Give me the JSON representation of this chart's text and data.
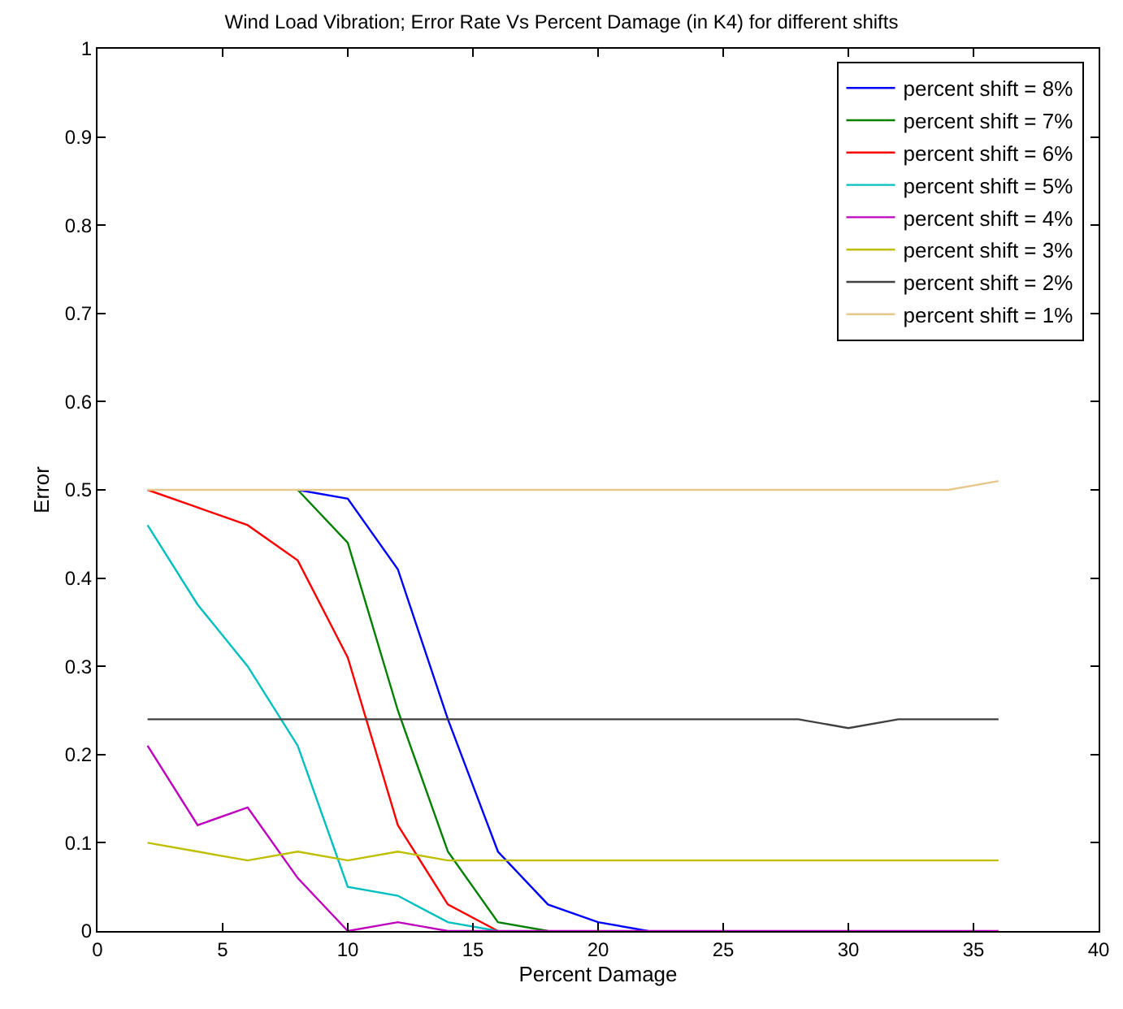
{
  "chart_data": {
    "type": "line",
    "title": "Wind Load Vibration; Error Rate Vs Percent Damage (in K4) for different shifts",
    "xlabel": "Percent Damage",
    "ylabel": "Error",
    "x": [
      2,
      4,
      6,
      8,
      10,
      12,
      14,
      16,
      18,
      20,
      22,
      24,
      26,
      28,
      30,
      32,
      34,
      36
    ],
    "series": [
      {
        "name": "percent shift = 8%",
        "color": "#0000ff",
        "values": [
          null,
          null,
          null,
          0.5,
          0.49,
          0.41,
          0.24,
          0.09,
          0.03,
          0.01,
          0,
          null,
          null,
          null,
          null,
          null,
          null,
          null
        ]
      },
      {
        "name": "percent shift = 7%",
        "color": "#008000",
        "values": [
          null,
          null,
          null,
          0.5,
          0.44,
          0.25,
          0.09,
          0.01,
          0,
          null,
          null,
          null,
          null,
          null,
          null,
          null,
          null,
          null
        ]
      },
      {
        "name": "percent shift = 6%",
        "color": "#ff0000",
        "values": [
          0.5,
          0.48,
          0.46,
          0.42,
          0.31,
          0.12,
          0.03,
          0,
          null,
          null,
          null,
          null,
          null,
          null,
          null,
          null,
          null,
          null
        ]
      },
      {
        "name": "percent shift = 5%",
        "color": "#00bfbf",
        "values": [
          0.46,
          0.37,
          0.3,
          0.21,
          0.05,
          0.04,
          0.01,
          0,
          null,
          null,
          null,
          null,
          null,
          null,
          null,
          null,
          null,
          null
        ]
      },
      {
        "name": "percent shift = 4%",
        "color": "#bf00bf",
        "values": [
          0.21,
          0.12,
          0.14,
          0.06,
          0,
          0.01,
          0,
          0,
          0,
          0,
          0,
          0,
          0,
          0,
          0,
          0,
          0,
          0
        ]
      },
      {
        "name": "percent shift = 3%",
        "color": "#bfbf00",
        "values": [
          0.1,
          0.09,
          0.08,
          0.09,
          0.08,
          0.09,
          0.08,
          0.08,
          0.08,
          0.08,
          0.08,
          0.08,
          0.08,
          0.08,
          0.08,
          0.08,
          0.08,
          0.08
        ]
      },
      {
        "name": "percent shift = 2%",
        "color": "#404040",
        "values": [
          0.24,
          0.24,
          0.24,
          0.24,
          0.24,
          0.24,
          0.24,
          0.24,
          0.24,
          0.24,
          0.24,
          0.24,
          0.24,
          0.24,
          0.23,
          0.24,
          0.24,
          0.24
        ]
      },
      {
        "name": "percent shift = 1%",
        "color": "#e6c88c",
        "values": [
          0.5,
          0.5,
          0.5,
          0.5,
          0.5,
          0.5,
          0.5,
          0.5,
          0.5,
          0.5,
          0.5,
          0.5,
          0.5,
          0.5,
          0.5,
          0.5,
          0.5,
          0.51
        ]
      }
    ],
    "xlim": [
      0,
      40
    ],
    "xticks": [
      0,
      5,
      10,
      15,
      20,
      25,
      30,
      35,
      40
    ],
    "ylim": [
      0,
      1
    ],
    "yticks": [
      0,
      0.1,
      0.2,
      0.3,
      0.4,
      0.5,
      0.6,
      0.7,
      0.8,
      0.9,
      1
    ],
    "legend": "top right",
    "marker": "none",
    "line_style": "solid"
  }
}
